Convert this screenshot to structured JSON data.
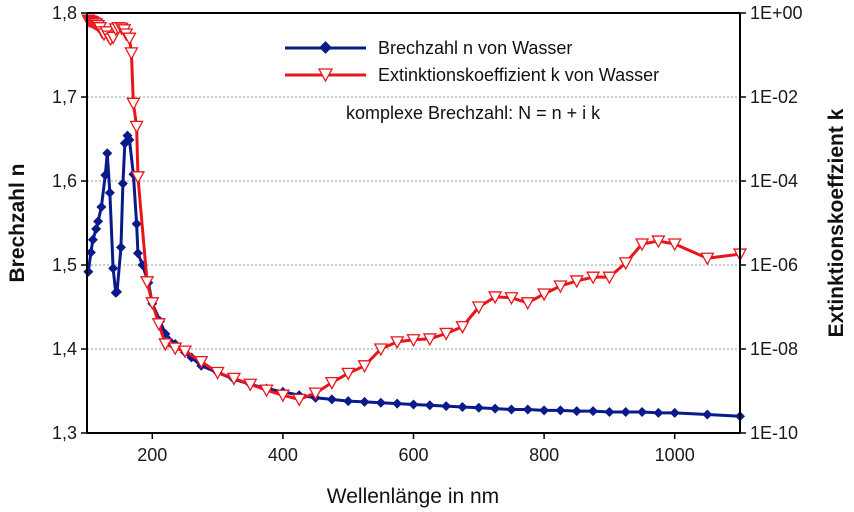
{
  "chart_data": {
    "type": "line",
    "title": "",
    "xlabel": "Wellenlänge in nm",
    "ylabel": "Brechzahl n",
    "y2label": "Extinktionskoeffzient k",
    "xlim": [
      100,
      1100
    ],
    "ylim": [
      1.3,
      1.8
    ],
    "y2lim": [
      1e-10,
      1
    ],
    "y2scale": "log",
    "grid": "horizontal dotted",
    "legend_position": "top-right",
    "annotation": "komplexe Brechzahl: N = n + i k",
    "xticks": [
      {
        "value": 200,
        "label": "200"
      },
      {
        "value": 400,
        "label": "400"
      },
      {
        "value": 600,
        "label": "600"
      },
      {
        "value": 800,
        "label": "800"
      },
      {
        "value": 1000,
        "label": "1000"
      }
    ],
    "yticks": [
      {
        "value": 1.3,
        "label": "1,3"
      },
      {
        "value": 1.4,
        "label": "1,4"
      },
      {
        "value": 1.5,
        "label": "1,5"
      },
      {
        "value": 1.6,
        "label": "1,6"
      },
      {
        "value": 1.7,
        "label": "1,7"
      },
      {
        "value": 1.8,
        "label": "1,8"
      }
    ],
    "y2ticks": [
      {
        "exp": 0,
        "label": "1E+00"
      },
      {
        "exp": -2,
        "label": "1E-02"
      },
      {
        "exp": -4,
        "label": "1E-04"
      },
      {
        "exp": -6,
        "label": "1E-06"
      },
      {
        "exp": -8,
        "label": "1E-08"
      },
      {
        "exp": -10,
        "label": "1E-10"
      }
    ],
    "series": [
      {
        "name": "Brechzahl n von Wasser",
        "axis": "left",
        "color": "#0a1a8a",
        "marker": "diamond",
        "x": [
          102,
          106,
          109,
          114,
          117,
          122,
          128,
          131,
          135,
          140,
          144,
          146,
          152,
          155,
          158,
          162,
          165,
          171,
          176,
          178,
          185,
          194,
          200,
          212,
          220,
          235,
          250,
          260,
          275,
          300,
          325,
          350,
          375,
          400,
          425,
          450,
          475,
          500,
          525,
          550,
          575,
          600,
          625,
          650,
          675,
          700,
          725,
          750,
          775,
          800,
          825,
          850,
          875,
          900,
          925,
          950,
          975,
          1000,
          1050,
          1100
        ],
        "y": [
          1.492,
          1.515,
          1.53,
          1.543,
          1.552,
          1.569,
          1.607,
          1.633,
          1.586,
          1.496,
          1.467,
          1.468,
          1.521,
          1.597,
          1.645,
          1.654,
          1.649,
          1.608,
          1.549,
          1.514,
          1.5,
          1.479,
          1.454,
          1.433,
          1.418,
          1.406,
          1.396,
          1.39,
          1.38,
          1.372,
          1.364,
          1.358,
          1.353,
          1.349,
          1.345,
          1.342,
          1.34,
          1.338,
          1.337,
          1.336,
          1.335,
          1.334,
          1.333,
          1.332,
          1.331,
          1.33,
          1.329,
          1.328,
          1.328,
          1.327,
          1.327,
          1.326,
          1.326,
          1.325,
          1.325,
          1.325,
          1.324,
          1.324,
          1.322,
          1.32
        ]
      },
      {
        "name": "Extinktionskoeffizient k von Wasser",
        "axis": "right",
        "color": "#e8161b",
        "marker": "triangle-down",
        "x": [
          102,
          105,
          108,
          111,
          114,
          117,
          120,
          123,
          126,
          130,
          133,
          136,
          140,
          144,
          148,
          153,
          157,
          160,
          165,
          168,
          171,
          176,
          178,
          192,
          200,
          210,
          220,
          235,
          250,
          275,
          300,
          325,
          350,
          375,
          400,
          425,
          450,
          475,
          500,
          525,
          550,
          575,
          600,
          625,
          650,
          675,
          700,
          725,
          750,
          775,
          800,
          825,
          850,
          875,
          900,
          925,
          950,
          975,
          1000,
          1050,
          1100
        ],
        "log10k": [
          -0.17,
          -0.19,
          -0.21,
          -0.24,
          -0.26,
          -0.3,
          -0.35,
          -0.45,
          -0.5,
          -0.45,
          -0.55,
          -0.62,
          -0.58,
          -0.38,
          -0.35,
          -0.36,
          -0.4,
          -0.5,
          -0.6,
          -0.95,
          -2.15,
          -2.7,
          -3.9,
          -6.4,
          -6.9,
          -7.4,
          -7.88,
          -7.98,
          -8.05,
          -8.3,
          -8.56,
          -8.7,
          -8.84,
          -8.98,
          -9.1,
          -9.2,
          -9.05,
          -8.8,
          -8.58,
          -8.4,
          -8.0,
          -7.83,
          -7.78,
          -7.76,
          -7.63,
          -7.47,
          -7.0,
          -6.76,
          -6.78,
          -6.9,
          -6.69,
          -6.5,
          -6.38,
          -6.29,
          -6.29,
          -5.95,
          -5.5,
          -5.43,
          -5.5,
          -5.84,
          -5.74
        ]
      }
    ]
  }
}
